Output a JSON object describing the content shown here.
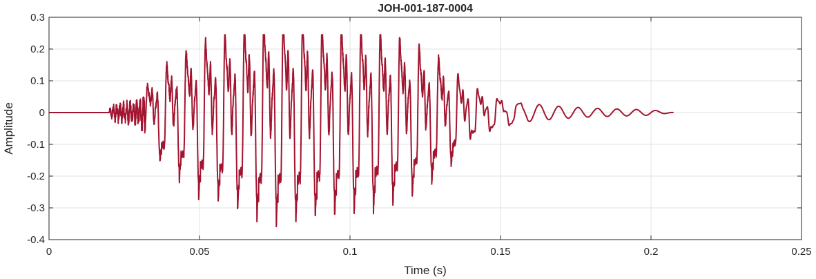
{
  "chart_data": {
    "type": "line",
    "title": "JOH-001-187-0004",
    "xlabel": "Time (s)",
    "ylabel": "Amplitude",
    "xlim": [
      0,
      0.25
    ],
    "ylim": [
      -0.4,
      0.3
    ],
    "xticks": [
      0,
      0.05,
      0.1,
      0.15,
      0.2,
      0.25
    ],
    "xtick_labels": [
      "0",
      "0.05",
      "0.1",
      "0.15",
      "0.2",
      "0.25"
    ],
    "yticks": [
      -0.4,
      -0.3,
      -0.2,
      -0.1,
      0,
      0.1,
      0.2,
      0.3
    ],
    "ytick_labels": [
      "-0.4",
      "-0.3",
      "-0.2",
      "-0.1",
      "0",
      "0.1",
      "0.2",
      "0.3"
    ],
    "grid": true,
    "line_color": "#a2142f",
    "series": [
      {
        "signal_duration": 0.2075,
        "onset_time": 0.02,
        "voicing_onset": 0.032,
        "fundamental_frequency_hz": 155,
        "envelope": [
          [
            0.0,
            0.0
          ],
          [
            0.019,
            0.002
          ],
          [
            0.022,
            0.03
          ],
          [
            0.03,
            0.04
          ],
          [
            0.034,
            0.12
          ],
          [
            0.04,
            0.18
          ],
          [
            0.05,
            0.25
          ],
          [
            0.06,
            0.28
          ],
          [
            0.07,
            0.32
          ],
          [
            0.08,
            0.33
          ],
          [
            0.09,
            0.31
          ],
          [
            0.1,
            0.3
          ],
          [
            0.11,
            0.29
          ],
          [
            0.12,
            0.25
          ],
          [
            0.13,
            0.19
          ],
          [
            0.14,
            0.1
          ],
          [
            0.15,
            0.07
          ],
          [
            0.16,
            0.05
          ],
          [
            0.17,
            0.035
          ],
          [
            0.18,
            0.025
          ],
          [
            0.19,
            0.02
          ],
          [
            0.2,
            0.015
          ],
          [
            0.2075,
            0.0
          ]
        ],
        "peaks": {
          "max": 0.245,
          "min": -0.38
        }
      }
    ]
  }
}
